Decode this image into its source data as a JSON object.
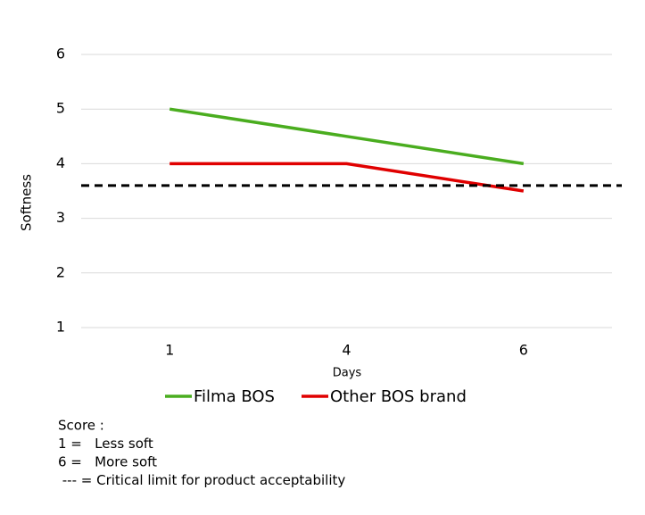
{
  "chart_data": {
    "type": "line",
    "x_label": "Days",
    "y_label": "Softness",
    "categories": [
      "1",
      "4",
      "6"
    ],
    "series": [
      {
        "name": "Filma BOS",
        "color": "#4aad1f",
        "values": [
          5,
          4.5,
          4
        ]
      },
      {
        "name": "Other BOS brand",
        "color": "#e00000",
        "values": [
          4,
          4,
          3.5
        ]
      }
    ],
    "reference_line": 3.6,
    "ylim": [
      1,
      6
    ],
    "yticks": [
      1,
      2,
      3,
      4,
      5,
      6
    ],
    "grid": true,
    "legend": "bottom",
    "notes": [
      "Score :",
      "1 =   Less soft",
      "6 =   More soft",
      " --- = Critical limit for product acceptability"
    ]
  }
}
